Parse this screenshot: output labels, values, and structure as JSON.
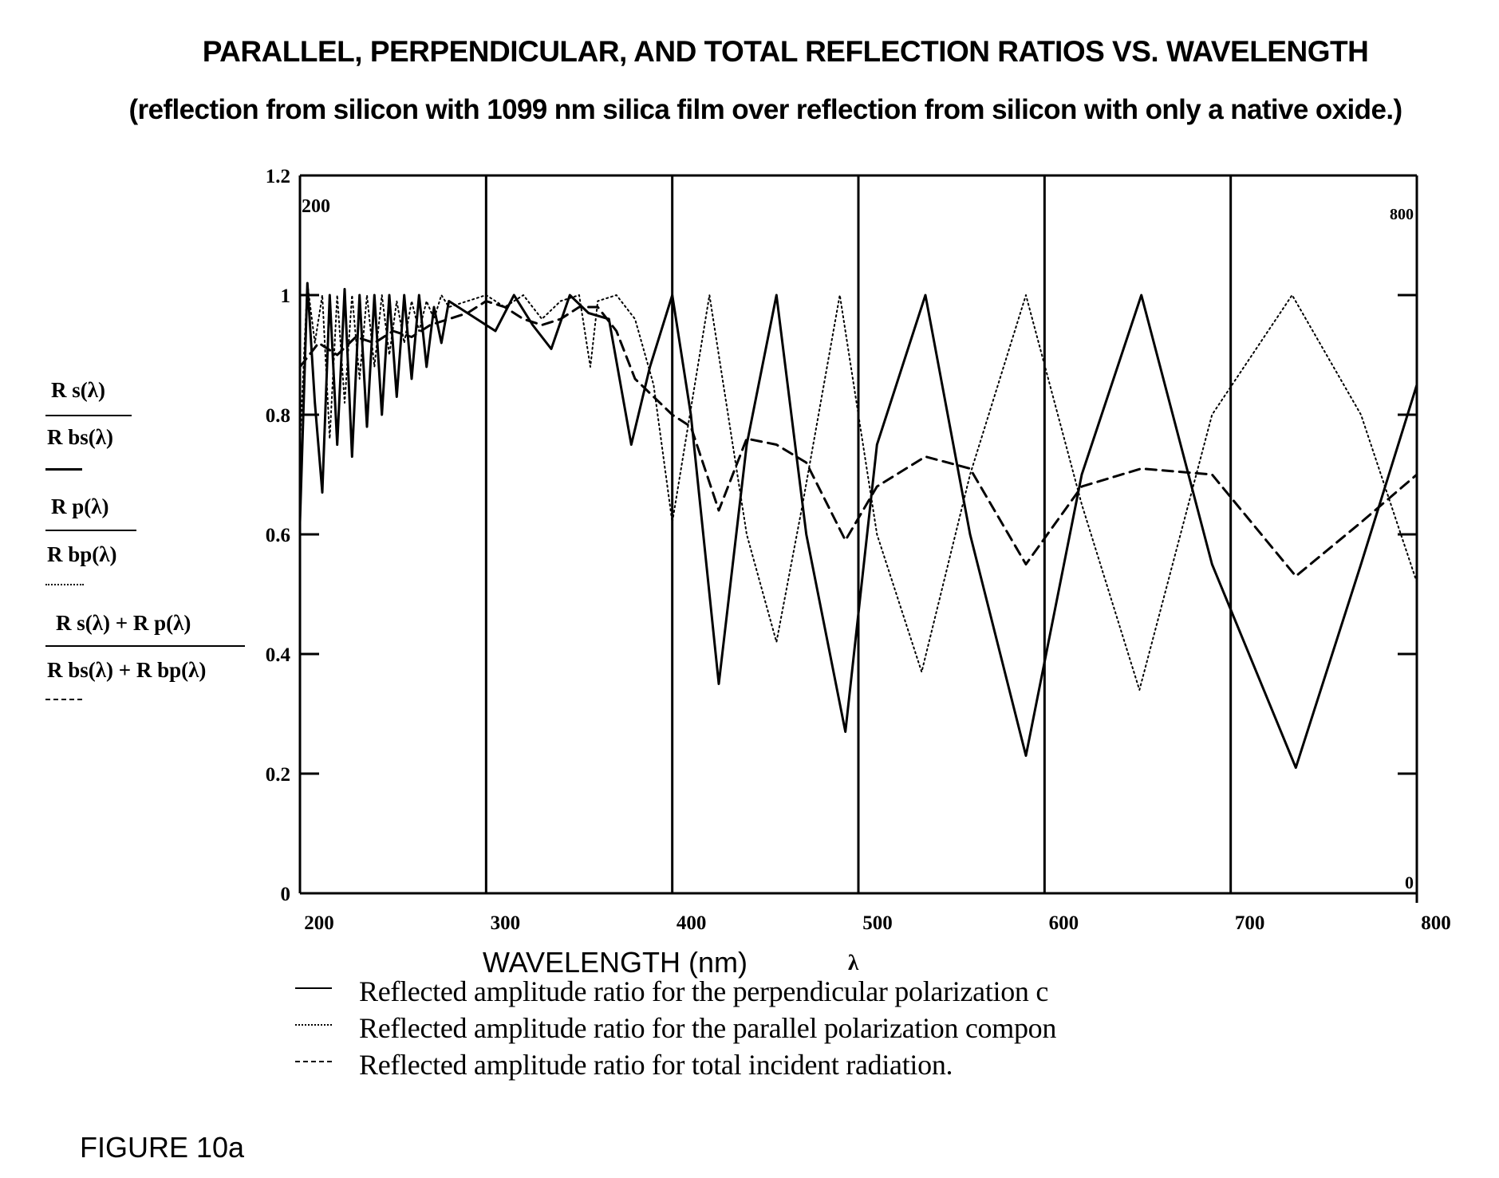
{
  "title": "PARALLEL, PERPENDICULAR, AND TOTAL REFLECTION RATIOS VS. WAVELENGTH",
  "subtitle": "(reflection from silicon with 1099 nm silica film over reflection from silicon with only a native oxide.)",
  "figure_label": "FIGURE 10a",
  "y_axis_labels": {
    "s_num": "R s(λ)",
    "s_den": "R bs(λ)",
    "p_num": "R p(λ)",
    "p_den": "R bp(λ)",
    "t_num": "R s(λ) + R p(λ)",
    "t_den": "R bs(λ) + R bp(λ)"
  },
  "corner_labels": {
    "top_left": "200",
    "top_right": "800",
    "bottom_right": "0"
  },
  "legend": [
    {
      "style": "solid",
      "text": "Reflected amplitude ratio for the perpendicular polarization c"
    },
    {
      "style": "dotted",
      "text": "Reflected amplitude ratio for the parallel polarization compon"
    },
    {
      "style": "dashed",
      "text": "Reflected amplitude ratio for total incident radiation."
    }
  ],
  "chart_data": {
    "type": "line",
    "title": "PARALLEL, PERPENDICULAR, AND TOTAL REFLECTION RATIOS VS. WAVELENGTH",
    "subtitle": "(reflection from silicon with 1099 nm silica film over reflection from silicon with only a native oxide.)",
    "xlabel": "WAVELENGTH (nm)",
    "x_symbol": "λ",
    "ylabel": "R s(λ) / R bs(λ), R p(λ) / R bp(λ), (R s(λ) + R p(λ)) / (R bs(λ) + R bp(λ))",
    "xlim": [
      200,
      800
    ],
    "ylim": [
      0,
      1.2
    ],
    "x_ticks": [
      "200",
      "300",
      "400",
      "500",
      "600",
      "700",
      "800"
    ],
    "y_ticks": [
      "0",
      "0.2",
      "0.4",
      "0.6",
      "0.8",
      "1",
      "1.2"
    ],
    "grid": "vertical lines at every 100 nm",
    "legend_position": "bottom",
    "colors": {
      "line": "#000000",
      "background": "#ffffff"
    },
    "series": [
      {
        "name": "Reflected amplitude ratio for the perpendicular polarization c",
        "style": "solid",
        "x": [
          200,
          204,
          208,
          212,
          216,
          220,
          224,
          228,
          232,
          236,
          240,
          244,
          248,
          252,
          256,
          260,
          264,
          268,
          272,
          276,
          280,
          290,
          300,
          305,
          315,
          325,
          335,
          345,
          355,
          366,
          378,
          388,
          400,
          410,
          425,
          440,
          456,
          472,
          493,
          510,
          536,
          560,
          590,
          620,
          652,
          690,
          735,
          770,
          800
        ],
        "y": [
          0.62,
          1.02,
          0.82,
          0.67,
          1.0,
          0.75,
          1.01,
          0.73,
          1.0,
          0.78,
          1.0,
          0.8,
          1.0,
          0.83,
          1.0,
          0.86,
          1.0,
          0.88,
          0.98,
          0.92,
          0.99,
          0.97,
          0.95,
          0.94,
          1.0,
          0.95,
          0.91,
          1.0,
          0.97,
          0.96,
          0.75,
          0.88,
          1.0,
          0.8,
          0.35,
          0.75,
          1.0,
          0.6,
          0.27,
          0.75,
          1.0,
          0.6,
          0.23,
          0.7,
          1.0,
          0.55,
          0.21,
          0.55,
          0.85
        ]
      },
      {
        "name": "Reflected amplitude ratio for the parallel polarization compon",
        "style": "dotted",
        "x": [
          200,
          204,
          208,
          212,
          216,
          220,
          224,
          228,
          232,
          236,
          240,
          244,
          248,
          252,
          256,
          260,
          264,
          268,
          272,
          276,
          280,
          300,
          310,
          320,
          330,
          340,
          350,
          356,
          360,
          370,
          380,
          390,
          400,
          420,
          440,
          456,
          470,
          490,
          510,
          534,
          560,
          590,
          620,
          651,
          690,
          733,
          770,
          800
        ],
        "y": [
          0.75,
          1.02,
          0.92,
          1.0,
          0.76,
          1.0,
          0.82,
          1.0,
          0.86,
          1.0,
          0.88,
          1.0,
          0.9,
          0.99,
          0.92,
          0.99,
          0.94,
          0.99,
          0.96,
          1.0,
          0.98,
          1.0,
          0.98,
          1.0,
          0.96,
          0.99,
          1.0,
          0.88,
          0.99,
          1.0,
          0.96,
          0.85,
          0.62,
          1.0,
          0.6,
          0.42,
          0.65,
          1.0,
          0.6,
          0.37,
          0.7,
          1.0,
          0.65,
          0.34,
          0.8,
          1.0,
          0.8,
          0.52
        ]
      },
      {
        "name": "Reflected amplitude ratio for total incident radiation.",
        "style": "dashed",
        "x": [
          200,
          210,
          220,
          230,
          240,
          250,
          260,
          270,
          280,
          290,
          300,
          310,
          320,
          330,
          340,
          350,
          360,
          370,
          380,
          390,
          400,
          410,
          425,
          440,
          456,
          472,
          493,
          510,
          536,
          560,
          590,
          620,
          652,
          690,
          735,
          770,
          800
        ],
        "y": [
          0.88,
          0.92,
          0.9,
          0.93,
          0.92,
          0.94,
          0.93,
          0.95,
          0.96,
          0.97,
          0.99,
          0.98,
          0.96,
          0.95,
          0.96,
          0.98,
          0.98,
          0.94,
          0.86,
          0.83,
          0.8,
          0.78,
          0.64,
          0.76,
          0.75,
          0.72,
          0.59,
          0.68,
          0.73,
          0.71,
          0.55,
          0.68,
          0.71,
          0.7,
          0.53,
          0.62,
          0.7
        ]
      }
    ]
  }
}
